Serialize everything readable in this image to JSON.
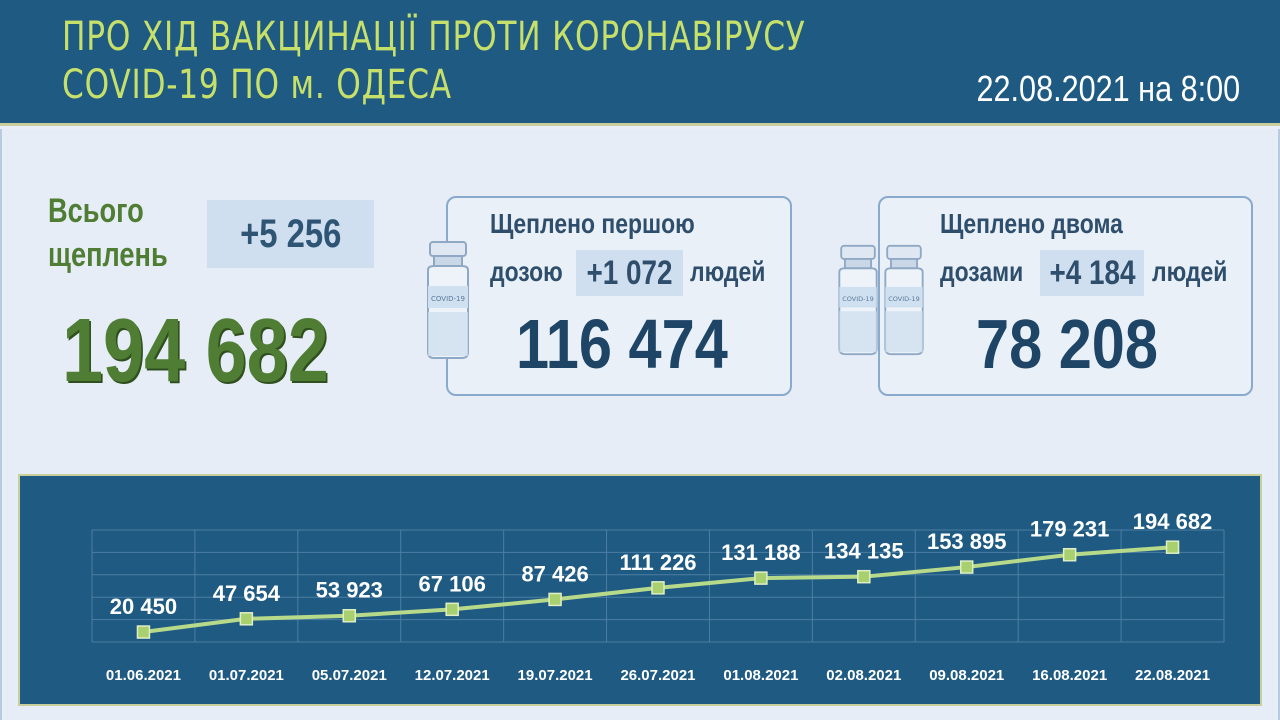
{
  "header": {
    "title_line1": "ПРО ХІД ВАКЦИНАЦІЇ ПРОТИ КОРОНАВІРУСУ",
    "title_line2": "COVID-19 ПО м. ОДЕСА",
    "date": "22.08.2021 на 8:00"
  },
  "total": {
    "label_line1": "Всього",
    "label_line2": "щеплень",
    "delta": "+5 256",
    "value": "194 682"
  },
  "first_dose": {
    "line1": "Щеплено першою",
    "line2_prefix": "дозою",
    "delta": "+1 072",
    "line2_suffix": "людей",
    "value": "116 474",
    "vial_label": "COVID-19"
  },
  "second_dose": {
    "line1": "Щеплено двома",
    "line2_prefix": "дозами",
    "delta": "+4 184",
    "line2_suffix": "людей",
    "value": "78 208",
    "vial_label": "COVID-19"
  },
  "colors": {
    "header_bg": "#1f5a82",
    "title": "#c7e06a",
    "green_total": "#4f7d34",
    "line": "#b7d98a",
    "marker": "#a9d06e"
  },
  "chart_data": {
    "type": "line",
    "categories": [
      "01.06.2021",
      "01.07.2021",
      "05.07.2021",
      "12.07.2021",
      "19.07.2021",
      "26.07.2021",
      "01.08.2021",
      "02.08.2021",
      "09.08.2021",
      "16.08.2021",
      "22.08.2021"
    ],
    "values": [
      20450,
      47654,
      53923,
      67106,
      87426,
      111226,
      131188,
      134135,
      153895,
      179231,
      194682
    ],
    "value_labels": [
      "20 450",
      "47 654",
      "53 923",
      "67 106",
      "87 426",
      "111 226",
      "131 188",
      "134 135",
      "153 895",
      "179 231",
      "194 682"
    ],
    "grid": true,
    "ylim": [
      0,
      230000
    ]
  }
}
